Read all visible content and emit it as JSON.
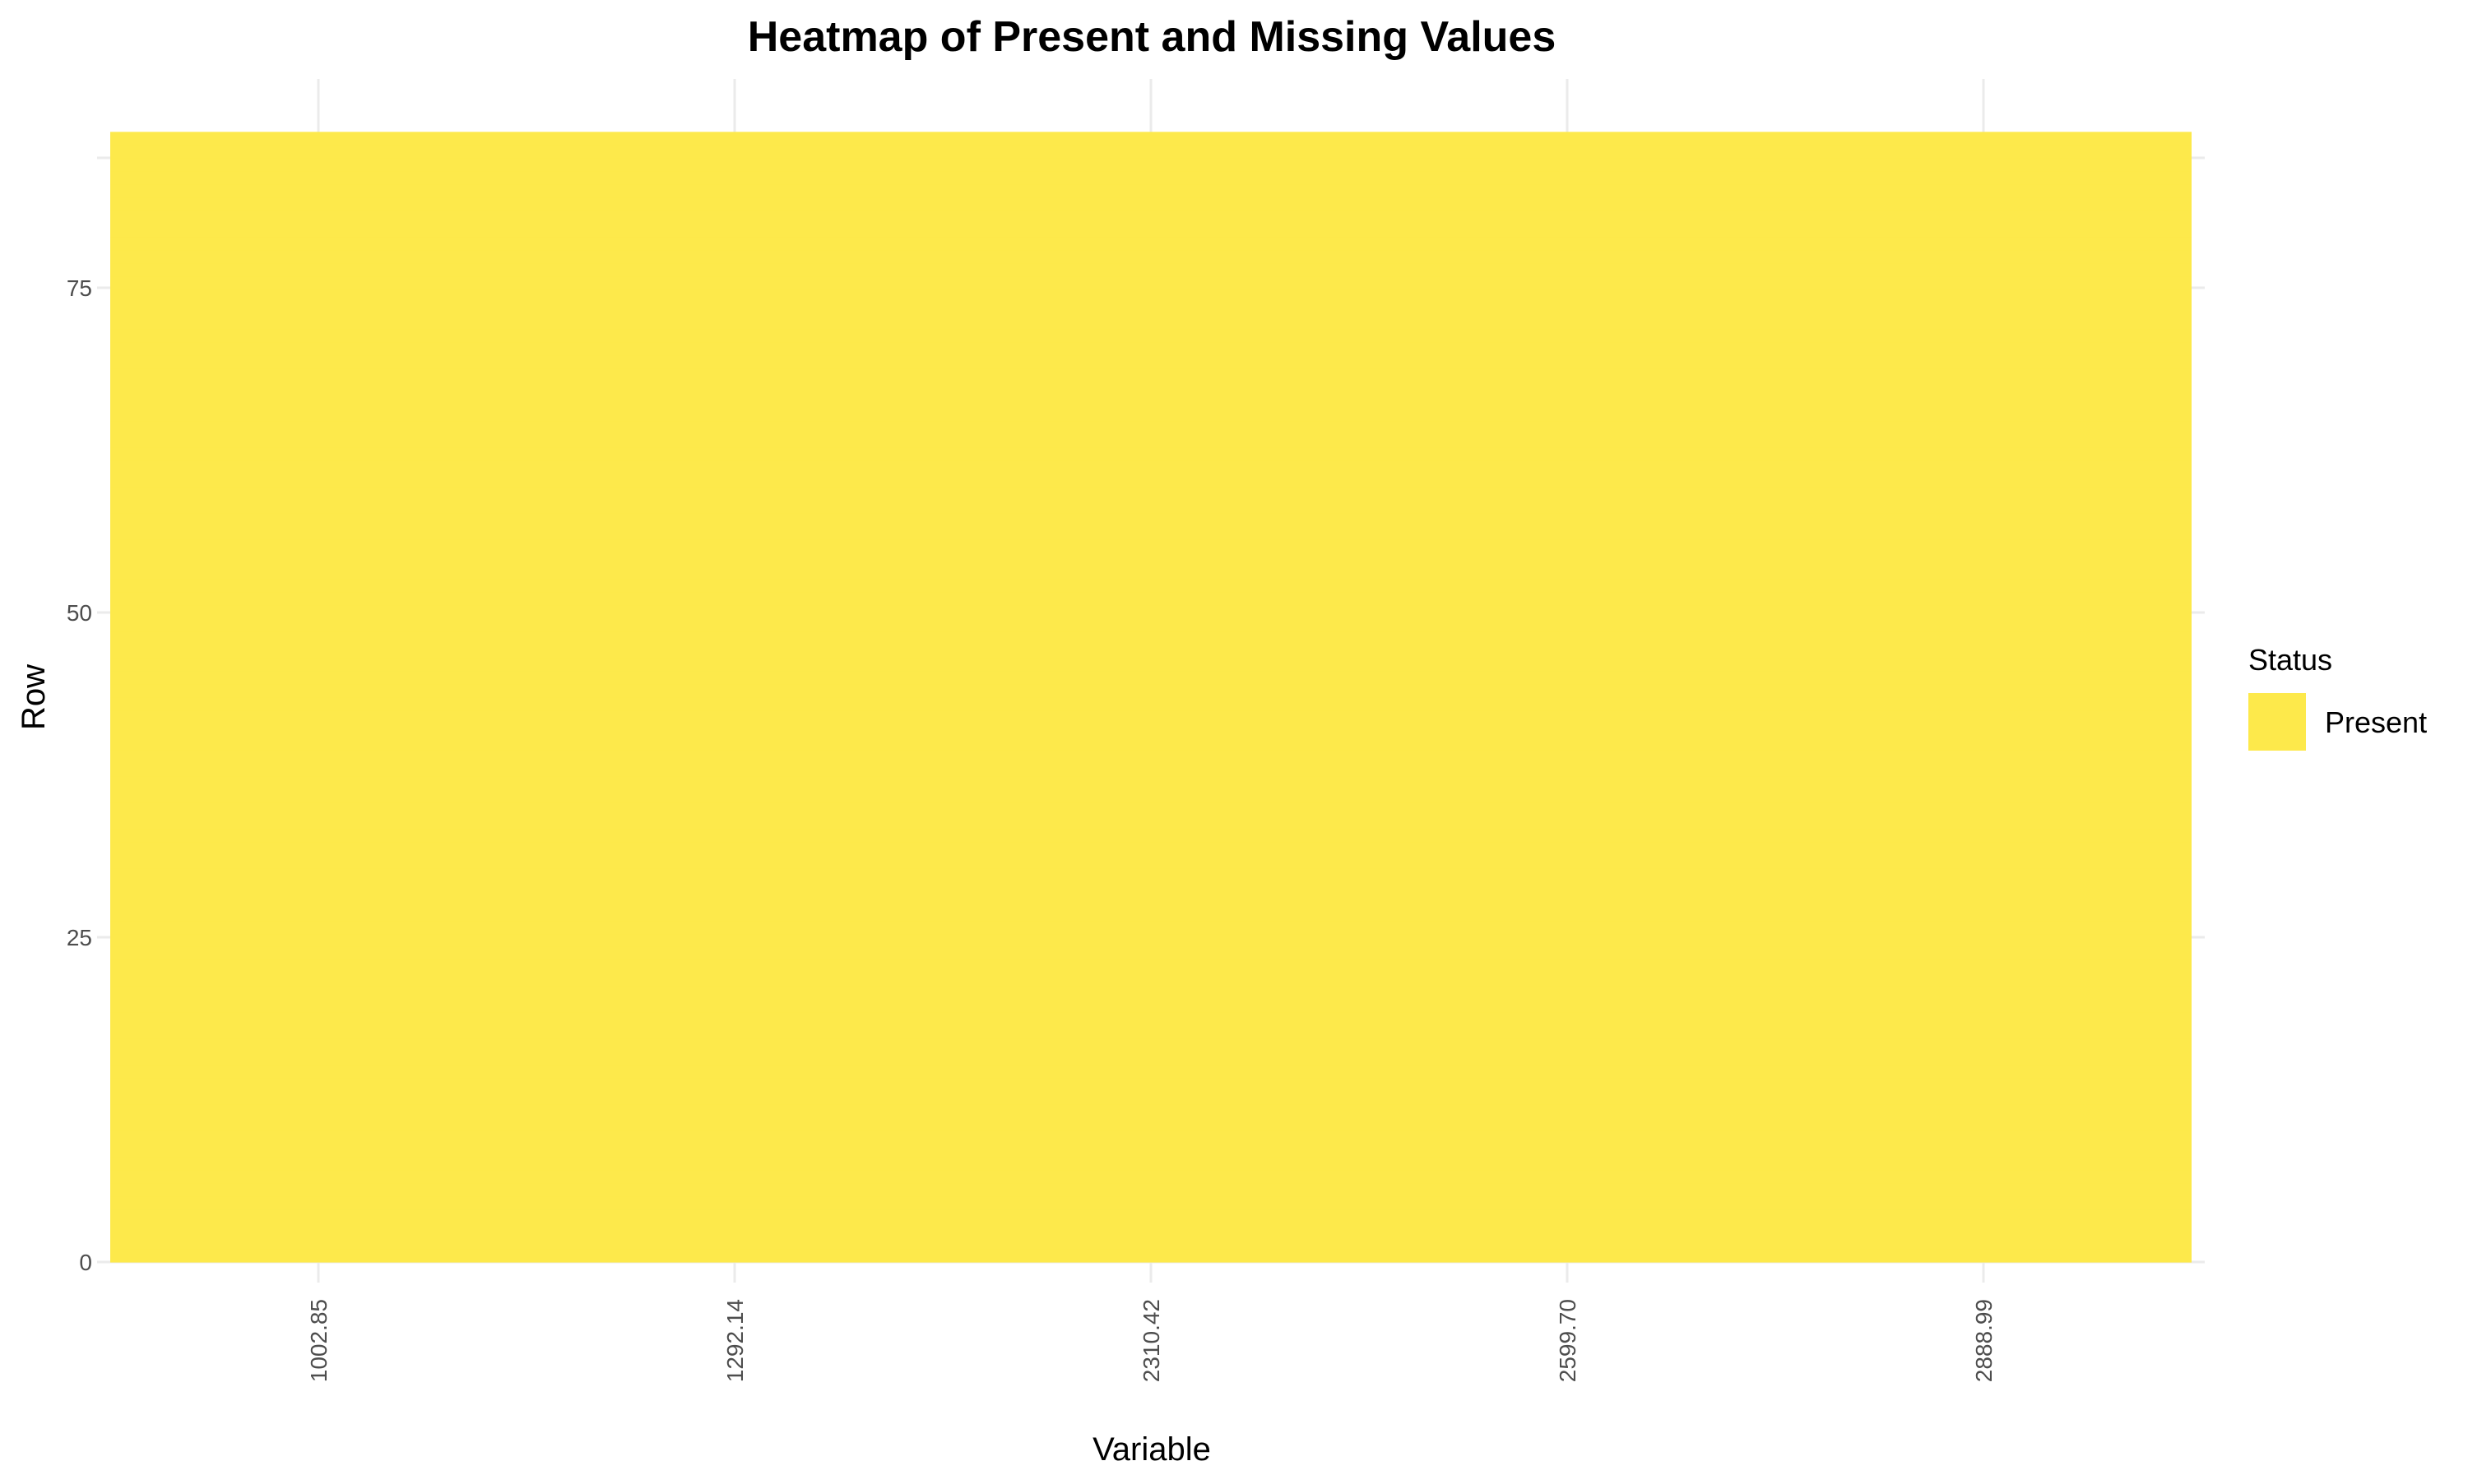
{
  "chart_data": {
    "type": "heatmap",
    "title": "Heatmap of Present and Missing Values",
    "xlabel": "Variable",
    "ylabel": "Row",
    "x_categories": [
      "1002.85",
      "1292.14",
      "2310.42",
      "2599.70",
      "2888.99"
    ],
    "y_ticks": [
      "0",
      "25",
      "50",
      "75"
    ],
    "ylim": [
      0,
      87
    ],
    "rows": 86,
    "cell_status": "Present",
    "grid": true,
    "legend": {
      "position": "right",
      "title": "Status",
      "entries": [
        {
          "label": "Present",
          "color": "#FDE94B"
        }
      ]
    }
  },
  "colors": {
    "present": "#FDE94B",
    "grid": "#EBEBEB",
    "background": "#FFFFFF"
  }
}
